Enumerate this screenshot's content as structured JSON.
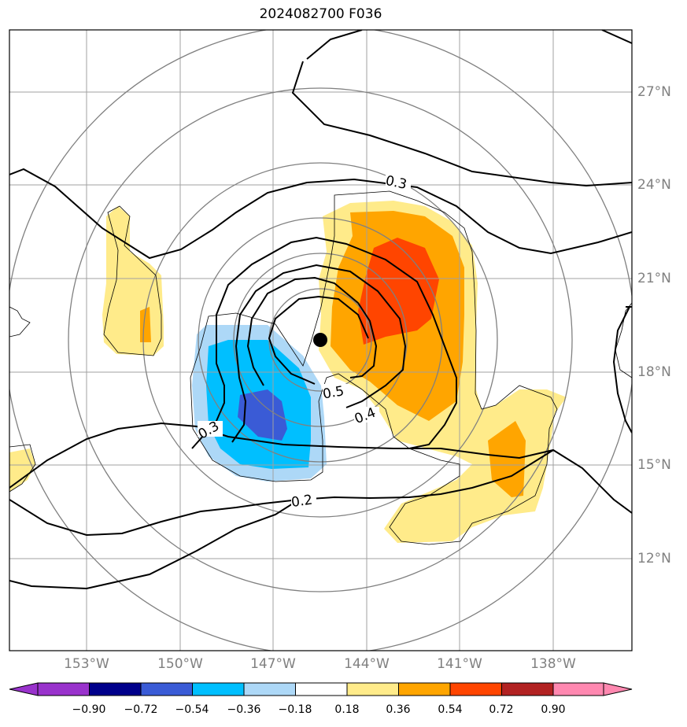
{
  "title": "2024082700 F036",
  "center_marker": "black-dot-storm-center",
  "contour_labels": [
    "0.3",
    "0.5",
    "0.4",
    "0.3",
    "0.2"
  ],
  "lat_labels": [
    "27°N",
    "24°N",
    "21°N",
    "18°N",
    "15°N",
    "12°N"
  ],
  "lon_labels": [
    "153°W",
    "150°W",
    "147°W",
    "144°W",
    "141°W",
    "138°W"
  ],
  "colorbar": {
    "ticks": [
      "−0.90",
      "−0.72",
      "−0.54",
      "−0.36",
      "−0.18",
      "0.18",
      "0.36",
      "0.54",
      "0.72",
      "0.90"
    ],
    "colors": [
      "#9932cc",
      "#00008b",
      "#3a5bd6",
      "#00bfff",
      "#add8f7",
      "#ffffff",
      "#ffeb8a",
      "#ffa500",
      "#ff4500",
      "#b22222",
      "#ff88b0"
    ]
  },
  "fill_colors": {
    "light_yellow": "#ffeb8a",
    "orange": "#ffa500",
    "red_orange": "#ff4500",
    "light_blue": "#add8f7",
    "cyan": "#00bfff",
    "royal_blue": "#3a5bd6"
  }
}
